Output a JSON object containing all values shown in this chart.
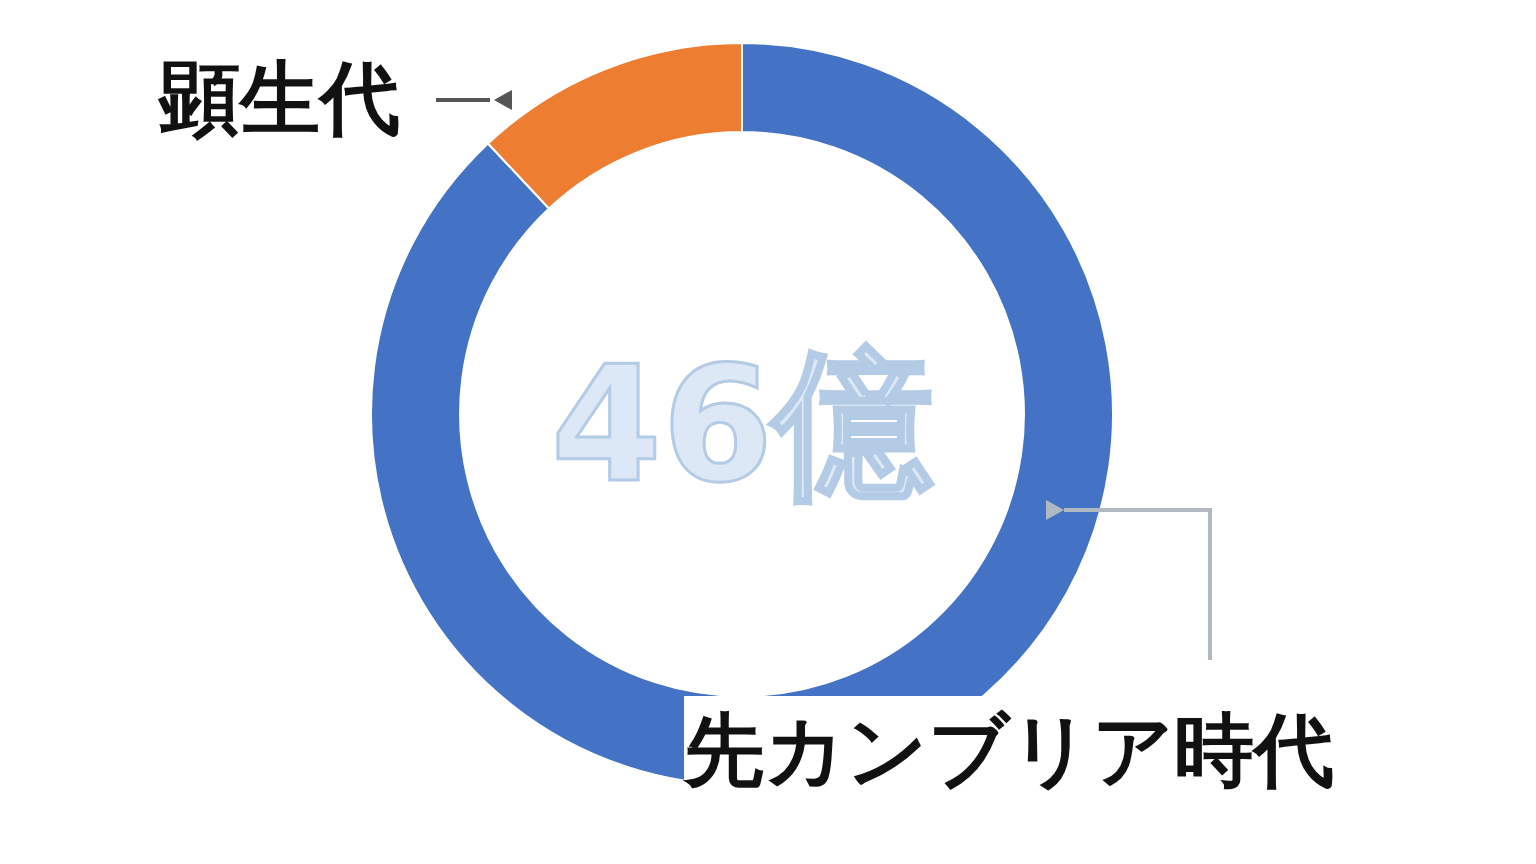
{
  "chart_data": {
    "type": "donut",
    "categories": [
      "先カンブリア時代",
      "顕生代"
    ],
    "values": [
      88,
      12
    ],
    "colors": [
      "#4472c4",
      "#ed7d31"
    ],
    "annotations": [
      "46億"
    ]
  }
}
